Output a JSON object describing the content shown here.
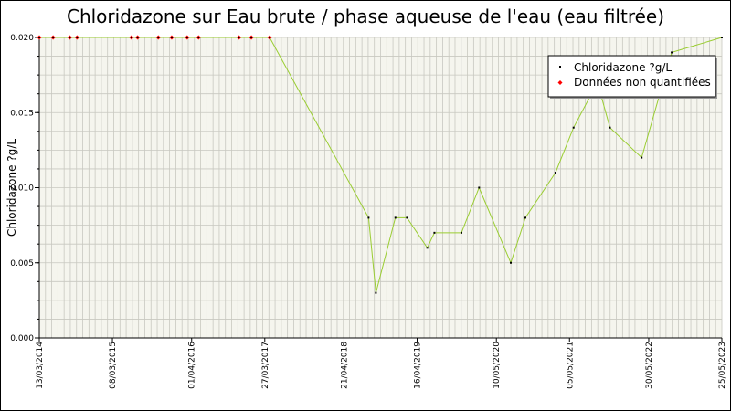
{
  "chart_data": {
    "type": "line",
    "title": "Chloridazone sur Eau brute / phase aqueuse de l'eau (eau filtrée)",
    "ylabel": "Chloridazone ?g/L",
    "xlabel": "",
    "ylim": [
      0,
      0.02
    ],
    "yticks": [
      "0.000",
      "0.005",
      "0.010",
      "0.015",
      "0.020"
    ],
    "xlim": [
      "2014-03-13",
      "2023-05-25"
    ],
    "xticks": [
      "13/03/2014",
      "08/03/2015",
      "01/04/2016",
      "27/03/2017",
      "21/04/2018",
      "16/04/2019",
      "10/05/2020",
      "05/05/2021",
      "30/05/2022",
      "25/05/2023"
    ],
    "grid": true,
    "legend_position": "top-right",
    "series": [
      {
        "name": "Chloridazone ?g/L",
        "color": "#9acd32",
        "marker_color": "#000000",
        "points": [
          {
            "x": "2014-03-13",
            "y": 0.02
          },
          {
            "x": "2014-05-20",
            "y": 0.02
          },
          {
            "x": "2014-08-10",
            "y": 0.02
          },
          {
            "x": "2014-09-15",
            "y": 0.02
          },
          {
            "x": "2015-06-10",
            "y": 0.02
          },
          {
            "x": "2015-07-10",
            "y": 0.02
          },
          {
            "x": "2015-10-20",
            "y": 0.02
          },
          {
            "x": "2015-12-25",
            "y": 0.02
          },
          {
            "x": "2016-03-10",
            "y": 0.02
          },
          {
            "x": "2016-05-05",
            "y": 0.02
          },
          {
            "x": "2016-11-20",
            "y": 0.02
          },
          {
            "x": "2017-01-20",
            "y": 0.02
          },
          {
            "x": "2017-04-20",
            "y": 0.02
          },
          {
            "x": "2018-08-20",
            "y": 0.008
          },
          {
            "x": "2018-09-25",
            "y": 0.003
          },
          {
            "x": "2018-12-30",
            "y": 0.008
          },
          {
            "x": "2019-02-25",
            "y": 0.008
          },
          {
            "x": "2019-06-05",
            "y": 0.006
          },
          {
            "x": "2019-07-10",
            "y": 0.007
          },
          {
            "x": "2019-11-20",
            "y": 0.007
          },
          {
            "x": "2020-02-15",
            "y": 0.01
          },
          {
            "x": "2020-07-20",
            "y": 0.005
          },
          {
            "x": "2020-09-30",
            "y": 0.008
          },
          {
            "x": "2021-02-25",
            "y": 0.011
          },
          {
            "x": "2021-05-25",
            "y": 0.014
          },
          {
            "x": "2021-09-20",
            "y": 0.017
          },
          {
            "x": "2021-11-20",
            "y": 0.014
          },
          {
            "x": "2022-04-25",
            "y": 0.012
          },
          {
            "x": "2022-09-20",
            "y": 0.019
          },
          {
            "x": "2023-05-25",
            "y": 0.02
          }
        ]
      },
      {
        "name": "Données non quantifiées",
        "color": "#ff0000",
        "points": [
          {
            "x": "2014-03-13",
            "y": 0.02
          },
          {
            "x": "2014-05-20",
            "y": 0.02
          },
          {
            "x": "2014-08-10",
            "y": 0.02
          },
          {
            "x": "2014-09-15",
            "y": 0.02
          },
          {
            "x": "2015-06-10",
            "y": 0.02
          },
          {
            "x": "2015-07-10",
            "y": 0.02
          },
          {
            "x": "2015-10-20",
            "y": 0.02
          },
          {
            "x": "2015-12-25",
            "y": 0.02
          },
          {
            "x": "2016-03-10",
            "y": 0.02
          },
          {
            "x": "2016-05-05",
            "y": 0.02
          },
          {
            "x": "2016-11-20",
            "y": 0.02
          },
          {
            "x": "2017-01-20",
            "y": 0.02
          },
          {
            "x": "2017-04-20",
            "y": 0.02
          }
        ]
      }
    ]
  },
  "style": {
    "plot_background": "#f5f5ee",
    "grid_color": "#c8c8c0"
  }
}
